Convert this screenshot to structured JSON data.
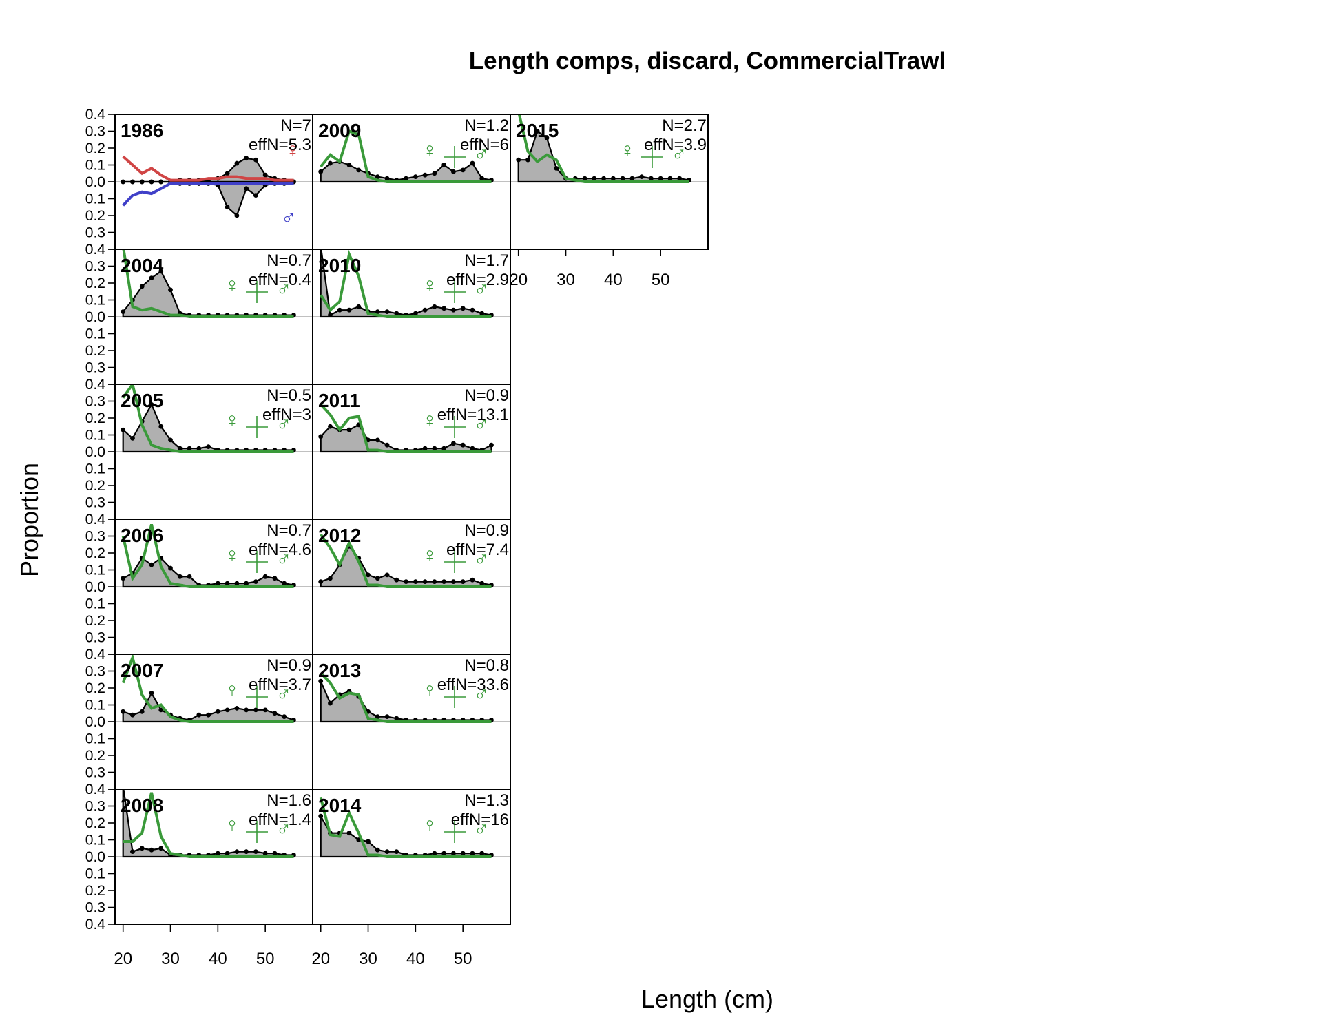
{
  "figure": {
    "title": "Length comps, discard, CommercialTrawl",
    "xlabel": "Length (cm)",
    "ylabel": "Proportion"
  },
  "chart_data": {
    "type": "area",
    "title": "Length comps, discard, CommercialTrawl",
    "xlabel": "Length (cm)",
    "ylabel": "Proportion",
    "xlim": [
      18.3,
      60
    ],
    "ylim": [
      -0.4,
      0.4
    ],
    "x_ticks": [
      20,
      30,
      40,
      50
    ],
    "y_ticks": [
      -0.4,
      -0.3,
      -0.2,
      -0.1,
      0.0,
      0.1,
      0.2,
      0.3,
      0.4
    ],
    "y_tick_labels": [
      "0.4",
      "0.3",
      "0.2",
      "0.1",
      "0.0",
      "0.1",
      "0.2",
      "0.3",
      "0.4"
    ],
    "lengths": [
      20,
      22,
      24,
      26,
      28,
      30,
      32,
      34,
      36,
      38,
      40,
      42,
      44,
      46,
      48,
      50,
      52,
      54,
      56
    ],
    "female_symbol": "♀",
    "male_symbol": "♂",
    "colors": {
      "observed_fill": "#b0b0b0",
      "observed_line": "#000000",
      "expected_combined": "#3a9a3a",
      "expected_female": "#d04545",
      "expected_male": "#4040c8",
      "zero_line": "#c0c0c0"
    },
    "panels": [
      {
        "year": "1986",
        "N": "N=7",
        "effN": "effN=5.3",
        "sexed": true,
        "obs_female": [
          0,
          0,
          0,
          0,
          0,
          0,
          0.01,
          0.01,
          0.01,
          0.01,
          0.02,
          0.05,
          0.11,
          0.14,
          0.13,
          0.04,
          0.02,
          0.01,
          0
        ],
        "obs_male": [
          0,
          0,
          0,
          0,
          0,
          0,
          0.01,
          0.01,
          0.01,
          0.01,
          0.02,
          0.15,
          0.2,
          0.04,
          0.08,
          0.02,
          0.01,
          0.01,
          0
        ],
        "exp_female": [
          0.15,
          0.1,
          0.05,
          0.08,
          0.04,
          0.01,
          0.01,
          0.01,
          0.01,
          0.02,
          0.02,
          0.03,
          0.03,
          0.02,
          0.02,
          0.02,
          0.01,
          0.01,
          0.01
        ],
        "exp_male": [
          0.14,
          0.08,
          0.06,
          0.07,
          0.04,
          0.01,
          0.01,
          0.01,
          0.01,
          0.01,
          0.01,
          0.01,
          0.01,
          0.01,
          0.01,
          0.01,
          0.01,
          0.01,
          0.01
        ]
      },
      {
        "year": "2004",
        "N": "N=0.7",
        "effN": "effN=0.4",
        "sexed": false,
        "obs": [
          0.03,
          0.1,
          0.18,
          0.23,
          0.27,
          0.16,
          0.02,
          0.01,
          0.01,
          0.01,
          0.01,
          0.01,
          0.01,
          0.01,
          0.01,
          0.01,
          0.01,
          0.01,
          0.01
        ],
        "exp": [
          0.55,
          0.06,
          0.04,
          0.05,
          0.03,
          0.01,
          0.01,
          0,
          0,
          0,
          0,
          0,
          0,
          0,
          0,
          0,
          0,
          0,
          0
        ]
      },
      {
        "year": "2005",
        "N": "N=0.5",
        "effN": "effN=3",
        "sexed": false,
        "obs": [
          0.13,
          0.08,
          0.18,
          0.28,
          0.15,
          0.07,
          0.02,
          0.02,
          0.02,
          0.03,
          0.01,
          0.01,
          0.01,
          0.01,
          0.01,
          0.01,
          0.01,
          0.01,
          0.01
        ],
        "exp": [
          0.32,
          0.4,
          0.16,
          0.04,
          0.02,
          0.01,
          0,
          0,
          0,
          0,
          0,
          0,
          0,
          0,
          0,
          0,
          0,
          0,
          0
        ]
      },
      {
        "year": "2006",
        "N": "N=0.7",
        "effN": "effN=4.6",
        "sexed": false,
        "obs": [
          0.05,
          0.08,
          0.17,
          0.13,
          0.17,
          0.11,
          0.06,
          0.06,
          0.01,
          0.01,
          0.02,
          0.02,
          0.02,
          0.02,
          0.03,
          0.06,
          0.05,
          0.02,
          0.01
        ],
        "exp": [
          0.3,
          0.05,
          0.13,
          0.37,
          0.12,
          0.02,
          0.01,
          0,
          0,
          0,
          0,
          0,
          0,
          0,
          0,
          0,
          0,
          0,
          0
        ]
      },
      {
        "year": "2007",
        "N": "N=0.9",
        "effN": "effN=3.7",
        "sexed": false,
        "obs": [
          0.06,
          0.04,
          0.06,
          0.17,
          0.07,
          0.04,
          0.02,
          0.01,
          0.04,
          0.04,
          0.06,
          0.07,
          0.08,
          0.07,
          0.07,
          0.07,
          0.05,
          0.03,
          0.01
        ],
        "exp": [
          0.23,
          0.38,
          0.16,
          0.08,
          0.1,
          0.03,
          0.01,
          0,
          0,
          0,
          0,
          0,
          0,
          0,
          0,
          0,
          0,
          0,
          0
        ]
      },
      {
        "year": "2008",
        "N": "N=1.6",
        "effN": "effN=1.4",
        "sexed": false,
        "obs": [
          0.5,
          0.03,
          0.05,
          0.04,
          0.05,
          0.01,
          0.01,
          0.01,
          0.01,
          0.01,
          0.02,
          0.02,
          0.03,
          0.03,
          0.03,
          0.02,
          0.02,
          0.01,
          0.01
        ],
        "exp": [
          0.09,
          0.09,
          0.14,
          0.38,
          0.12,
          0.02,
          0.01,
          0,
          0,
          0,
          0,
          0,
          0,
          0,
          0,
          0,
          0,
          0,
          0
        ]
      },
      {
        "year": "2009",
        "N": "N=1.2",
        "effN": "effN=6",
        "sexed": false,
        "obs": [
          0.06,
          0.11,
          0.12,
          0.1,
          0.07,
          0.05,
          0.03,
          0.02,
          0.01,
          0.02,
          0.03,
          0.04,
          0.05,
          0.1,
          0.06,
          0.07,
          0.11,
          0.02,
          0.01
        ],
        "exp": [
          0.09,
          0.16,
          0.12,
          0.3,
          0.28,
          0.03,
          0.01,
          0,
          0,
          0,
          0,
          0,
          0,
          0,
          0,
          0,
          0,
          0,
          0
        ]
      },
      {
        "year": "2010",
        "N": "N=1.7",
        "effN": "effN=2.9",
        "sexed": false,
        "obs": [
          0.47,
          0.01,
          0.04,
          0.04,
          0.06,
          0.03,
          0.03,
          0.03,
          0.02,
          0.01,
          0.02,
          0.04,
          0.06,
          0.05,
          0.04,
          0.05,
          0.04,
          0.02,
          0.01
        ],
        "exp": [
          0.13,
          0.04,
          0.09,
          0.37,
          0.24,
          0.02,
          0.01,
          0,
          0,
          0,
          0,
          0,
          0,
          0,
          0,
          0,
          0,
          0,
          0
        ]
      },
      {
        "year": "2011",
        "N": "N=0.9",
        "effN": "effN=13.1",
        "sexed": false,
        "obs": [
          0.09,
          0.15,
          0.13,
          0.13,
          0.16,
          0.07,
          0.07,
          0.04,
          0.01,
          0.01,
          0.01,
          0.02,
          0.02,
          0.02,
          0.05,
          0.04,
          0.02,
          0.01,
          0.04
        ],
        "exp": [
          0.28,
          0.22,
          0.13,
          0.2,
          0.21,
          0.01,
          0.01,
          0,
          0,
          0,
          0,
          0,
          0,
          0,
          0,
          0,
          0,
          0,
          0
        ]
      },
      {
        "year": "2012",
        "N": "N=0.9",
        "effN": "effN=7.4",
        "sexed": false,
        "obs": [
          0.03,
          0.05,
          0.13,
          0.24,
          0.17,
          0.07,
          0.05,
          0.07,
          0.04,
          0.03,
          0.03,
          0.03,
          0.03,
          0.03,
          0.03,
          0.03,
          0.04,
          0.02,
          0.01
        ],
        "exp": [
          0.31,
          0.23,
          0.13,
          0.26,
          0.15,
          0.01,
          0.01,
          0,
          0,
          0,
          0,
          0,
          0,
          0,
          0,
          0,
          0,
          0,
          0
        ]
      },
      {
        "year": "2013",
        "N": "N=0.8",
        "effN": "effN=33.6",
        "sexed": false,
        "obs": [
          0.24,
          0.11,
          0.16,
          0.18,
          0.15,
          0.06,
          0.03,
          0.03,
          0.02,
          0.01,
          0.01,
          0.01,
          0.01,
          0.01,
          0.01,
          0.01,
          0.01,
          0.01,
          0.01
        ],
        "exp": [
          0.29,
          0.23,
          0.14,
          0.17,
          0.16,
          0.02,
          0.01,
          0,
          0,
          0,
          0,
          0,
          0,
          0,
          0,
          0,
          0,
          0,
          0
        ]
      },
      {
        "year": "2014",
        "N": "N=1.3",
        "effN": "effN=16",
        "sexed": false,
        "obs": [
          0.24,
          0.14,
          0.14,
          0.14,
          0.1,
          0.09,
          0.04,
          0.03,
          0.03,
          0.01,
          0.01,
          0.01,
          0.02,
          0.02,
          0.02,
          0.02,
          0.02,
          0.02,
          0.01
        ],
        "exp": [
          0.35,
          0.13,
          0.12,
          0.26,
          0.14,
          0.01,
          0.01,
          0,
          0,
          0,
          0,
          0,
          0,
          0,
          0,
          0,
          0,
          0,
          0
        ]
      },
      {
        "year": "2015",
        "N": "N=2.7",
        "effN": "effN=3.9",
        "sexed": false,
        "obs": [
          0.13,
          0.13,
          0.3,
          0.26,
          0.08,
          0.02,
          0.02,
          0.02,
          0.02,
          0.02,
          0.02,
          0.02,
          0.02,
          0.03,
          0.02,
          0.02,
          0.02,
          0.02,
          0.01
        ],
        "exp": [
          0.5,
          0.18,
          0.12,
          0.16,
          0.13,
          0.02,
          0.01,
          0,
          0,
          0,
          0,
          0,
          0,
          0,
          0,
          0,
          0,
          0,
          0
        ]
      }
    ]
  }
}
